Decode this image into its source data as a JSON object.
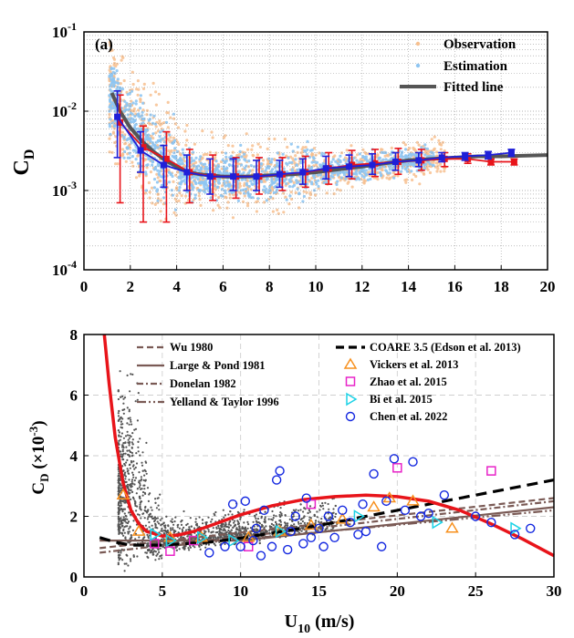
{
  "chart_data": [
    {
      "type": "scatter",
      "panel_label": "(a)",
      "ylabel": "C",
      "ylabel_sub": "D",
      "xlabel": "",
      "xlim": [
        0,
        20
      ],
      "ylim": [
        0.0001,
        0.1
      ],
      "yscale": "log",
      "grid": true,
      "legend_position": "top-right",
      "x_ticks": [
        "0",
        "2",
        "4",
        "6",
        "8",
        "10",
        "12",
        "14",
        "16",
        "18",
        "20"
      ],
      "y_ticks": [
        {
          "base": "10",
          "exp": "-4"
        },
        {
          "base": "10",
          "exp": "-3"
        },
        {
          "base": "10",
          "exp": "-2"
        },
        {
          "base": "10",
          "exp": "-1"
        }
      ],
      "legend": [
        {
          "label": "Observation",
          "color": "#f7c08f",
          "marker": "dot"
        },
        {
          "label": "Estimation",
          "color": "#8ec5f2",
          "marker": "dot"
        },
        {
          "label": "Fitted line",
          "color": "#555555",
          "marker": "line"
        }
      ],
      "series": [
        {
          "role": "observation-mean",
          "color": "#e8141a",
          "points": [
            [
              1.5,
              0.0072,
              0.0007,
              0.016
            ],
            [
              2.5,
              0.0035,
              0.0004,
              0.0065
            ],
            [
              3.5,
              0.0025,
              0.0004,
              0.0055
            ],
            [
              4.5,
              0.0017,
              0.0007,
              0.0033
            ],
            [
              5.5,
              0.0015,
              0.00075,
              0.0028
            ],
            [
              6.5,
              0.0015,
              0.0008,
              0.0026
            ],
            [
              7.5,
              0.0015,
              0.0009,
              0.0026
            ],
            [
              8.5,
              0.0016,
              0.001,
              0.0026
            ],
            [
              9.5,
              0.0017,
              0.0011,
              0.0027
            ],
            [
              10.5,
              0.0019,
              0.0012,
              0.003
            ],
            [
              11.5,
              0.0021,
              0.0014,
              0.0032
            ],
            [
              12.5,
              0.0022,
              0.0015,
              0.0033
            ],
            [
              13.5,
              0.0023,
              0.0016,
              0.0034
            ],
            [
              14.5,
              0.0024,
              0.0018,
              0.0033
            ],
            [
              15.5,
              0.0025,
              0.002,
              0.003
            ],
            [
              16.5,
              0.0025,
              0.0022,
              0.0029
            ],
            [
              17.5,
              0.0023,
              0.0021,
              0.0025
            ],
            [
              18.5,
              0.0023,
              0.0021,
              0.0025
            ]
          ]
        },
        {
          "role": "estimation-mean",
          "color": "#1f1fd8",
          "points": [
            [
              1.5,
              0.0085,
              0.0026,
              0.018
            ],
            [
              2.5,
              0.0032,
              0.0017,
              0.0055
            ],
            [
              3.5,
              0.0021,
              0.0011,
              0.0037
            ],
            [
              4.5,
              0.0017,
              0.001,
              0.0028
            ],
            [
              5.5,
              0.0015,
              0.0009,
              0.0025
            ],
            [
              6.5,
              0.0015,
              0.001,
              0.0025
            ],
            [
              7.5,
              0.0015,
              0.001,
              0.0024
            ],
            [
              8.5,
              0.0016,
              0.0011,
              0.0024
            ],
            [
              9.5,
              0.0017,
              0.0012,
              0.0025
            ],
            [
              10.5,
              0.0019,
              0.0014,
              0.0027
            ],
            [
              11.5,
              0.002,
              0.0015,
              0.0028
            ],
            [
              12.5,
              0.0021,
              0.0016,
              0.0029
            ],
            [
              13.5,
              0.0023,
              0.0018,
              0.003
            ],
            [
              14.5,
              0.0024,
              0.002,
              0.003
            ],
            [
              15.5,
              0.0026,
              0.0023,
              0.003
            ],
            [
              16.5,
              0.0027,
              0.0024,
              0.003
            ],
            [
              17.5,
              0.0028,
              0.0025,
              0.0031
            ],
            [
              18.5,
              0.003,
              0.0027,
              0.0033
            ]
          ]
        },
        {
          "role": "fitted-line",
          "color": "#555555",
          "points": [
            [
              1.2,
              0.017
            ],
            [
              1.6,
              0.0095
            ],
            [
              2,
              0.0062
            ],
            [
              2.5,
              0.0042
            ],
            [
              3,
              0.0031
            ],
            [
              3.5,
              0.0024
            ],
            [
              4,
              0.002
            ],
            [
              4.5,
              0.0017
            ],
            [
              5,
              0.0016
            ],
            [
              6,
              0.0015
            ],
            [
              7,
              0.0015
            ],
            [
              8,
              0.00155
            ],
            [
              9,
              0.0016
            ],
            [
              10,
              0.0017
            ],
            [
              11,
              0.00185
            ],
            [
              12,
              0.002
            ],
            [
              13,
              0.0022
            ],
            [
              14,
              0.0024
            ],
            [
              15,
              0.0025
            ],
            [
              16,
              0.0026
            ],
            [
              17,
              0.0027
            ],
            [
              18,
              0.0027
            ],
            [
              20,
              0.0028
            ]
          ]
        }
      ]
    },
    {
      "type": "scatter",
      "ylabel": "C",
      "ylabel_sub": "D",
      "ylabel_unit_pre": " (×10",
      "ylabel_unit_exp": "-3",
      "ylabel_unit_post": ")",
      "xlabel": "U",
      "xlabel_sub": "10",
      "xlabel_unit": " (m/s)",
      "xlim": [
        0,
        30
      ],
      "ylim": [
        0,
        8
      ],
      "grid": true,
      "x_ticks": [
        "0",
        "5",
        "10",
        "15",
        "20",
        "25",
        "30"
      ],
      "y_ticks": [
        "0",
        "2",
        "4",
        "6",
        "8"
      ],
      "legend": [
        {
          "label": "Wu 1980",
          "color": "#7a5a55",
          "dash": "dash"
        },
        {
          "label": "Large & Pond 1981",
          "color": "#7a5a55",
          "dash": "solid"
        },
        {
          "label": "Donelan 1982",
          "color": "#7a5a55",
          "dash": "dashdot"
        },
        {
          "label": "Yelland & Taylor 1996",
          "color": "#7a5a55",
          "dash": "dashdot2"
        },
        {
          "label": "COARE 3.5 (Edson et al. 2013)",
          "color": "#000000",
          "dash": "bigdash"
        },
        {
          "label": "Vickers et al. 2013",
          "color": "#f7901e",
          "marker": "triangle-up"
        },
        {
          "label": "Zhao et al. 2015",
          "color": "#e823c8",
          "marker": "square"
        },
        {
          "label": "Bi et al. 2015",
          "color": "#1cd2e6",
          "marker": "triangle-right"
        },
        {
          "label": "Chen et al. 2022",
          "color": "#1428e0",
          "marker": "circle"
        }
      ],
      "curves": [
        {
          "name": "Wu 1980",
          "color": "#7a5a55",
          "dash": "7,4",
          "points": [
            [
              1,
              0.95
            ],
            [
              30,
              2.6
            ]
          ]
        },
        {
          "name": "Large & Pond 1981",
          "color": "#7a5a55",
          "dash": "",
          "points": [
            [
              1,
              1.2
            ],
            [
              10,
              1.2
            ],
            [
              30,
              2.3
            ]
          ]
        },
        {
          "name": "Donelan 1982",
          "color": "#7a5a55",
          "dash": "7,3,2,3",
          "points": [
            [
              1,
              0.8
            ],
            [
              30,
              2.5
            ]
          ]
        },
        {
          "name": "Yelland & Taylor 1996",
          "color": "#7a5a55",
          "dash": "10,3,2,3,2,3",
          "points": [
            [
              6,
              1.05
            ],
            [
              30,
              2.2
            ]
          ]
        },
        {
          "name": "COARE 3.5 (Edson et al. 2013)",
          "color": "#000000",
          "dash": "12,7",
          "points": [
            [
              1,
              1.3
            ],
            [
              2,
              1.15
            ],
            [
              3,
              1.05
            ],
            [
              5,
              1.05
            ],
            [
              8,
              1.15
            ],
            [
              10,
              1.28
            ],
            [
              15,
              1.7
            ],
            [
              20,
              2.2
            ],
            [
              25,
              2.7
            ],
            [
              30,
              3.2
            ]
          ]
        },
        {
          "name": "fit",
          "color": "#e8141a",
          "dash": "",
          "points": [
            [
              1.3,
              8
            ],
            [
              1.6,
              6.4
            ],
            [
              2,
              4.6
            ],
            [
              2.5,
              3.1
            ],
            [
              3,
              2.2
            ],
            [
              3.5,
              1.75
            ],
            [
              4,
              1.5
            ],
            [
              5,
              1.35
            ],
            [
              6,
              1.38
            ],
            [
              7,
              1.5
            ],
            [
              8,
              1.68
            ],
            [
              10,
              2.05
            ],
            [
              12,
              2.35
            ],
            [
              14,
              2.55
            ],
            [
              16,
              2.65
            ],
            [
              18,
              2.7
            ],
            [
              20,
              2.65
            ],
            [
              22,
              2.5
            ],
            [
              24,
              2.2
            ],
            [
              26,
              1.75
            ],
            [
              28,
              1.25
            ],
            [
              30,
              0.7
            ]
          ]
        }
      ],
      "vickers_points": [
        [
          2.5,
          2.7
        ],
        [
          3.5,
          1.5
        ],
        [
          5.5,
          1.3
        ],
        [
          7.5,
          1.3
        ],
        [
          10.5,
          1.3
        ],
        [
          12.5,
          1.5
        ],
        [
          14.5,
          1.7
        ],
        [
          16.5,
          1.9
        ],
        [
          18.5,
          2.3
        ],
        [
          19.5,
          2.6
        ],
        [
          21,
          2.5
        ],
        [
          23.5,
          1.6
        ]
      ],
      "zhao_points": [
        [
          4.5,
          1.1
        ],
        [
          5.5,
          0.85
        ],
        [
          7,
          1.2
        ],
        [
          10.5,
          1.0
        ],
        [
          14.5,
          2.4
        ],
        [
          20,
          3.6
        ],
        [
          26,
          3.5
        ]
      ],
      "bi_points": [
        [
          4.5,
          1.4
        ],
        [
          5.5,
          1.2
        ],
        [
          7.5,
          1.3
        ],
        [
          9.5,
          1.2
        ],
        [
          12.5,
          1.5
        ],
        [
          17.5,
          2.0
        ],
        [
          22.5,
          1.8
        ],
        [
          27.5,
          1.6
        ]
      ],
      "chen_points": [
        [
          8,
          0.8
        ],
        [
          9,
          1.0
        ],
        [
          9.5,
          2.4
        ],
        [
          10,
          1.0
        ],
        [
          10.3,
          2.5
        ],
        [
          10.8,
          1.2
        ],
        [
          11,
          1.6
        ],
        [
          11.3,
          0.7
        ],
        [
          11.5,
          2.2
        ],
        [
          12,
          1.0
        ],
        [
          12.3,
          3.2
        ],
        [
          12.5,
          3.5
        ],
        [
          13,
          0.9
        ],
        [
          13.2,
          1.5
        ],
        [
          13.5,
          2.0
        ],
        [
          14,
          1.1
        ],
        [
          14.2,
          2.6
        ],
        [
          14.5,
          1.3
        ],
        [
          15,
          1.6
        ],
        [
          15.3,
          1.0
        ],
        [
          15.6,
          2.0
        ],
        [
          16,
          1.3
        ],
        [
          16.5,
          2.2
        ],
        [
          17,
          1.8
        ],
        [
          17.5,
          1.4
        ],
        [
          17.8,
          2.4
        ],
        [
          18,
          1.5
        ],
        [
          18.5,
          3.4
        ],
        [
          19,
          1.0
        ],
        [
          19.3,
          2.5
        ],
        [
          19.8,
          3.9
        ],
        [
          20.5,
          2.2
        ],
        [
          21,
          3.8
        ],
        [
          21.5,
          2.0
        ],
        [
          22,
          2.1
        ],
        [
          23,
          2.7
        ],
        [
          25,
          2.0
        ],
        [
          26,
          1.8
        ],
        [
          27.5,
          1.4
        ],
        [
          28.5,
          1.6
        ]
      ]
    }
  ]
}
